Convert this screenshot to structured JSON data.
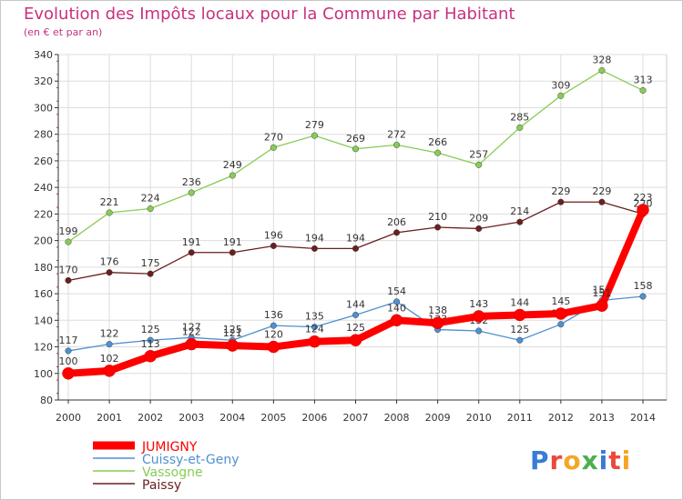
{
  "title": "Evolution des Impôts locaux pour la Commune par Habitant",
  "subtitle": "(en € et par an)",
  "logo": "Proxiti",
  "colors": {
    "title": "#c8317e",
    "axis": "#333333"
  },
  "chart_data": {
    "type": "line",
    "x": [
      2000,
      2001,
      2002,
      2003,
      2004,
      2005,
      2006,
      2007,
      2008,
      2009,
      2010,
      2011,
      2012,
      2013,
      2014
    ],
    "ylim": [
      80,
      340
    ],
    "yticks": [
      80,
      100,
      120,
      140,
      160,
      180,
      200,
      220,
      240,
      260,
      280,
      300,
      320,
      340
    ],
    "grid": true,
    "legend_position": "bottom-left",
    "series": [
      {
        "name": "JUMIGNY",
        "color": "#ff0000",
        "values": [
          100,
          102,
          113,
          122,
          121,
          120,
          124,
          125,
          140,
          138,
          143,
          144,
          145,
          151,
          223
        ]
      },
      {
        "name": "Cuissy-et-Geny",
        "color": "#4f90d0",
        "values": [
          117,
          122,
          125,
          127,
          125,
          136,
          135,
          144,
          154,
          133,
          132,
          125,
          137,
          155,
          158
        ]
      },
      {
        "name": "Vassogne",
        "color": "#88cc55",
        "values": [
          199,
          221,
          224,
          236,
          249,
          270,
          279,
          269,
          272,
          266,
          257,
          285,
          309,
          328,
          313
        ]
      },
      {
        "name": "Paissy",
        "color": "#6b1f1f",
        "values": [
          170,
          176,
          175,
          191,
          191,
          196,
          194,
          194,
          206,
          210,
          209,
          214,
          229,
          229,
          220
        ]
      }
    ]
  }
}
